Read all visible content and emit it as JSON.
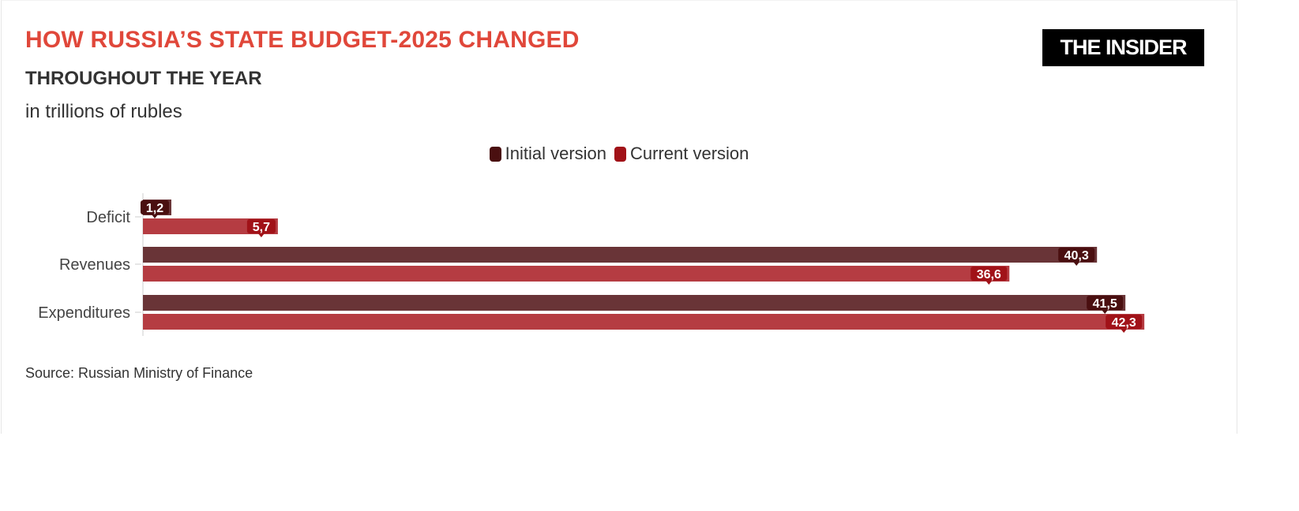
{
  "header": {
    "title": "HOW RUSSIA’S STATE BUDGET-2025 CHANGED",
    "subtitle": "THROUGHOUT THE YEAR",
    "unit": "in trillions of rubles",
    "logo": "THE INSIDER"
  },
  "footer": {
    "source": "Source: Russian Ministry of Finance"
  },
  "chart_data": {
    "type": "bar",
    "orientation": "horizontal",
    "title": "HOW RUSSIA’S STATE BUDGET-2025 CHANGED",
    "subtitle": "THROUGHOUT THE YEAR",
    "ylabel": "in trillions of rubles",
    "categories": [
      "Deficit",
      "Revenues",
      "Expenditures"
    ],
    "series": [
      {
        "name": "Initial version",
        "values": [
          1.2,
          40.3,
          41.5
        ],
        "labels": [
          "1,2",
          "40,3",
          "41,5"
        ],
        "color": "#693437",
        "label_color": "#4a0f10"
      },
      {
        "name": "Current version",
        "values": [
          5.7,
          36.6,
          42.3
        ],
        "labels": [
          "5,7",
          "36,6",
          "42,3"
        ],
        "color": "#b53c42",
        "label_color": "#a11218"
      }
    ],
    "xlim": [
      0,
      46
    ],
    "grid": false,
    "legend": "top-center"
  }
}
